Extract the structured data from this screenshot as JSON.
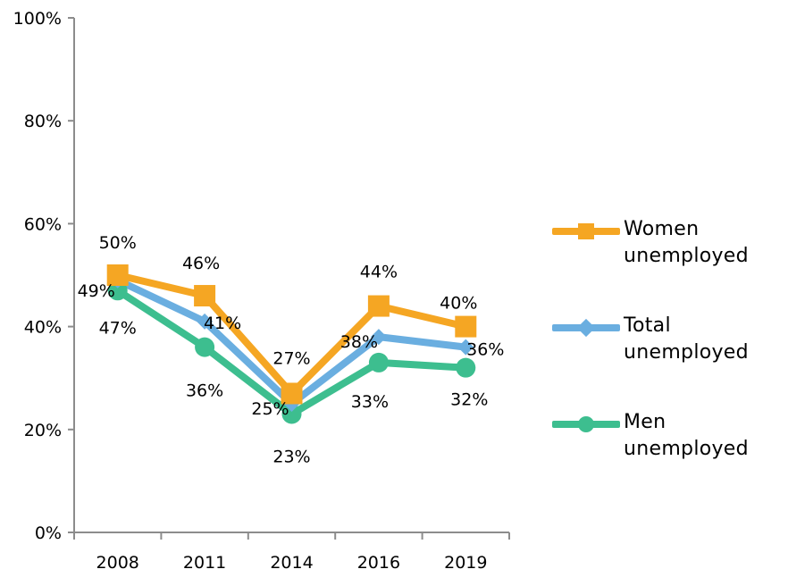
{
  "chart_data": {
    "type": "line",
    "categories": [
      "2008",
      "2011",
      "2014",
      "2016",
      "2019"
    ],
    "y_ticks": [
      "0%",
      "20%",
      "40%",
      "60%",
      "80%",
      "100%"
    ],
    "ylim": [
      0,
      100
    ],
    "grid": false,
    "legend_position": "right",
    "series": [
      {
        "name": "Women unemployed",
        "values": [
          50,
          46,
          27,
          44,
          40
        ],
        "labels": [
          "50%",
          "46%",
          "27%",
          "44%",
          "40%"
        ],
        "color": "#F5A623",
        "marker": "square"
      },
      {
        "name": "Total unemployed",
        "values": [
          49,
          41,
          25,
          38,
          36
        ],
        "labels": [
          "49%",
          "41%",
          "25%",
          "38%",
          "36%"
        ],
        "color": "#6AAEE0",
        "marker": "diamond"
      },
      {
        "name": "Men unemployed",
        "values": [
          47,
          36,
          23,
          33,
          32
        ],
        "labels": [
          "47%",
          "36%",
          "23%",
          "33%",
          "32%"
        ],
        "color": "#3DBE8F",
        "marker": "circle"
      }
    ]
  },
  "legend": {
    "women": {
      "line1": "Women",
      "line2": "unemployed"
    },
    "total": {
      "line1": "Total",
      "line2": "unemployed"
    },
    "men": {
      "line1": "Men",
      "line2": "unemployed"
    }
  }
}
